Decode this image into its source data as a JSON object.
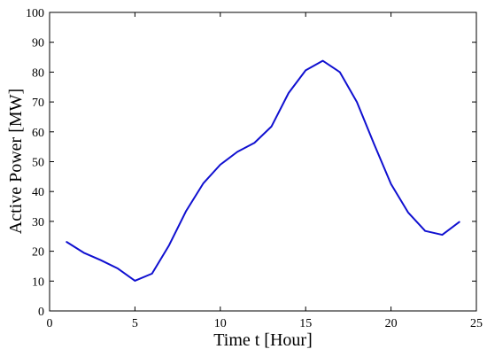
{
  "chart_data": {
    "type": "line",
    "xlabel": "Time t [Hour]",
    "ylabel": "Active Power [MW]",
    "xlim": [
      0,
      25
    ],
    "ylim": [
      0,
      100
    ],
    "xticks": [
      0,
      5,
      10,
      15,
      20,
      25
    ],
    "yticks": [
      0,
      10,
      20,
      30,
      40,
      50,
      60,
      70,
      80,
      90,
      100
    ],
    "grid": false,
    "series": [
      {
        "color": "#1010d0",
        "x": [
          1,
          2,
          3,
          4,
          5,
          6,
          7,
          8,
          9,
          10,
          11,
          12,
          13,
          14,
          15,
          16,
          17,
          18,
          19,
          20,
          21,
          22,
          23,
          24
        ],
        "y": [
          23.1,
          19.5,
          17,
          14.2,
          10.1,
          12.5,
          22,
          33.5,
          42.7,
          49,
          53.3,
          56.3,
          61.8,
          73,
          80.6,
          83.8,
          80,
          70,
          56,
          42.5,
          33,
          26.8,
          25.5,
          29.8
        ]
      }
    ]
  }
}
